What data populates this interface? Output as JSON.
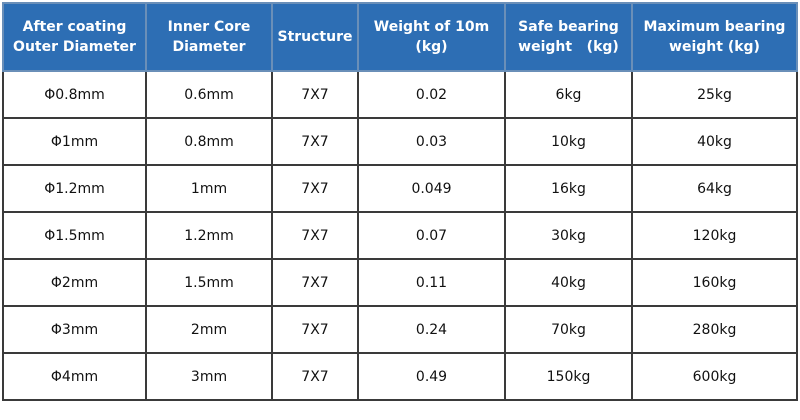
{
  "table": {
    "header": [
      "After coating\nOuter Diameter",
      "Inner Core\nDiameter",
      "Structure",
      "Weight of 10m\n(kg)",
      "Safe bearing\nweight   (kg)",
      "Maximum bearing\nweight (kg)"
    ],
    "rows": [
      [
        "Φ0.8mm",
        "0.6mm",
        "7X7",
        "0.02",
        "6kg",
        "25kg"
      ],
      [
        "Φ1mm",
        "0.8mm",
        "7X7",
        "0.03",
        "10kg",
        "40kg"
      ],
      [
        "Φ1.2mm",
        "1mm",
        "7X7",
        "0.049",
        "16kg",
        "64kg"
      ],
      [
        "Φ1.5mm",
        "1.2mm",
        "7X7",
        "0.07",
        "30kg",
        "120kg"
      ],
      [
        "Φ2mm",
        "1.5mm",
        "7X7",
        "0.11",
        "40kg",
        "160kg"
      ],
      [
        "Φ3mm",
        "2mm",
        "7X7",
        "0.24",
        "70kg",
        "280kg"
      ],
      [
        "Φ4mm",
        "3mm",
        "7X7",
        "0.49",
        "150kg",
        "600kg"
      ]
    ]
  }
}
